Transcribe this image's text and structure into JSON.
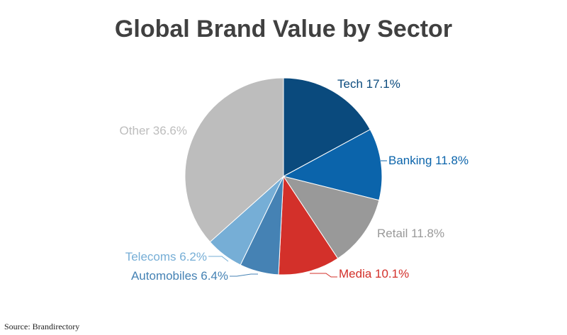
{
  "title": "Global Brand Value by Sector",
  "source": "Source: Brandirectory",
  "chart_data": {
    "type": "pie",
    "title": "Global Brand Value by Sector",
    "slices": [
      {
        "label": "Tech 17.1%",
        "name": "Tech",
        "value": 17.1,
        "color": "#0a4a7d",
        "label_color": "#0a4a7d"
      },
      {
        "label": "Banking 11.8%",
        "name": "Banking",
        "value": 11.8,
        "color": "#0b64ab",
        "label_color": "#0b64ab"
      },
      {
        "label": "Retail 11.8%",
        "name": "Retail",
        "value": 11.8,
        "color": "#999999",
        "label_color": "#999999"
      },
      {
        "label": "Media 10.1%",
        "name": "Media",
        "value": 10.1,
        "color": "#d3302a",
        "label_color": "#d3302a"
      },
      {
        "label": "Automobiles 6.4%",
        "name": "Automobiles",
        "value": 6.4,
        "color": "#4582b4",
        "label_color": "#4582b4"
      },
      {
        "label": "Telecoms 6.2%",
        "name": "Telecoms",
        "value": 6.2,
        "color": "#76aed6",
        "label_color": "#76aed6"
      },
      {
        "label": "Other 36.6%",
        "name": "Other",
        "value": 36.6,
        "color": "#bdbdbd",
        "label_color": "#bdbdbd"
      }
    ],
    "start": "12 o'clock",
    "direction": "clockwise"
  }
}
